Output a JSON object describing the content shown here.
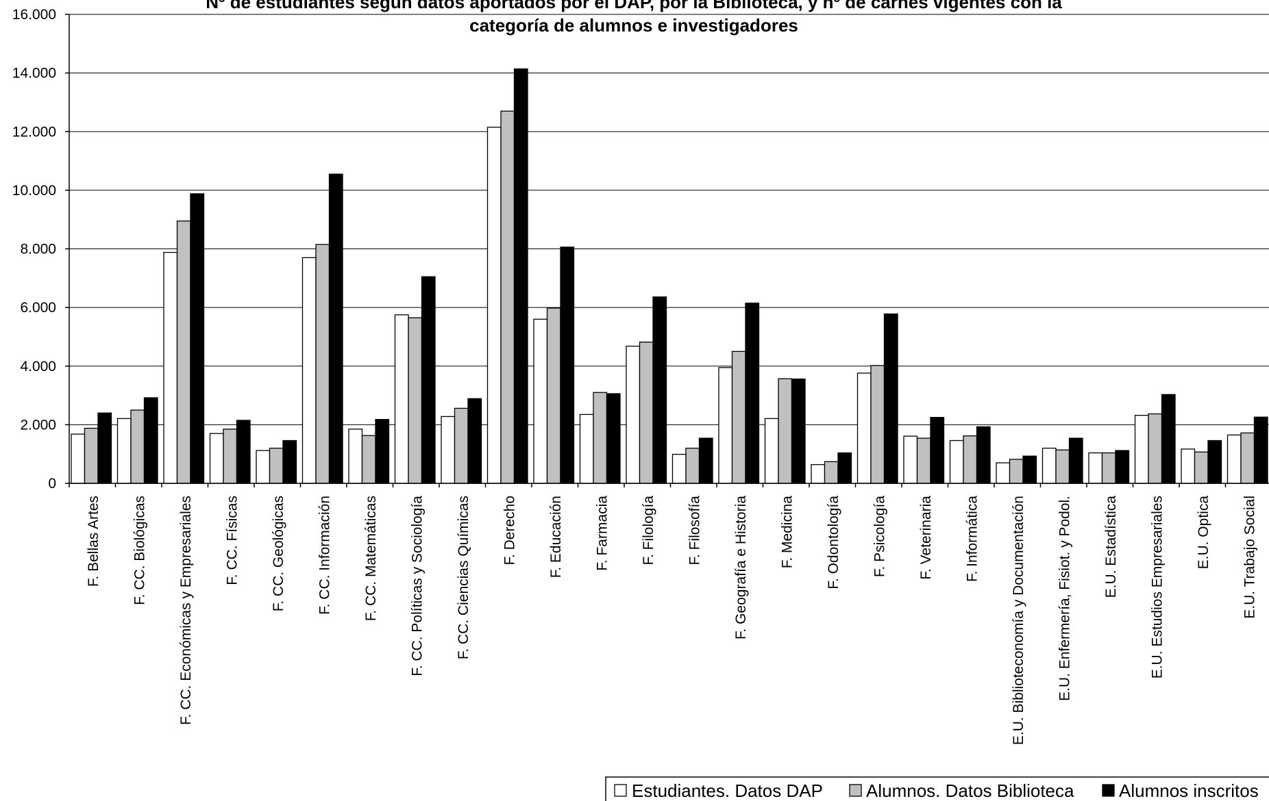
{
  "chart_data": {
    "type": "bar",
    "title_lines": [
      "Nº de estudiantes según datos aportados  por el DAP, por la Biblioteca, y  nº de carnés vigentes con la",
      "categoría de alumnos e investigadores"
    ],
    "xlabel": "",
    "ylabel": "",
    "ylim": [
      0,
      16000
    ],
    "yticks": [
      0,
      2000,
      4000,
      6000,
      8000,
      10000,
      12000,
      14000,
      16000
    ],
    "ytick_labels": [
      "0",
      "2.000",
      "4.000",
      "6.000",
      "8.000",
      "10.000",
      "12.000",
      "14.000",
      "16.000"
    ],
    "grid": "horizontal",
    "legend_position": "bottom-right",
    "categories": [
      "F. Bellas Artes",
      "F. CC. Biológicas",
      "F. CC. Económicas y Empresariales",
      "F. CC. Físicas",
      "F. CC. Geológicas",
      "F. CC. Información",
      "F. CC. Matemáticas",
      "F. CC. Políticas y Sociología",
      "F. CC. Ciencias Químicas",
      "F. Derecho",
      "F. Educación",
      "F. Farmacia",
      "F. Filología",
      "F. Filosofía",
      "F. Geografía e Historia",
      "F. Medicina",
      "F. Odontología",
      "F. Psicología",
      "F. Veterinaria",
      "F. Informática",
      "E.U. Biblioteconomía y Documentación",
      "E.U. Enfermería, Fisiot. y Podol.",
      "E.U. Estadística",
      "E.U. Estudios Empresariales",
      "E.U. Optica",
      "E.U. Trabajo Social"
    ],
    "series": [
      {
        "name": "Estudiantes. Datos DAP",
        "color": "#ffffff",
        "values": [
          1680,
          2210,
          7880,
          1700,
          1120,
          7700,
          1850,
          5750,
          2280,
          12150,
          5600,
          2350,
          4680,
          990,
          3950,
          2210,
          640,
          3760,
          1610,
          1460,
          700,
          1200,
          1040,
          2320,
          1170,
          1650
        ]
      },
      {
        "name": "Alumnos. Datos Biblioteca",
        "color": "#c0c0c0",
        "values": [
          1880,
          2500,
          8950,
          1850,
          1200,
          8150,
          1630,
          5650,
          2560,
          12700,
          5980,
          3100,
          4820,
          1200,
          4500,
          3570,
          740,
          4020,
          1540,
          1620,
          820,
          1140,
          1040,
          2370,
          1070,
          1720
        ]
      },
      {
        "name": "Alumnos inscritos",
        "color": "#000000",
        "values": [
          2400,
          2920,
          9880,
          2150,
          1460,
          10550,
          2180,
          7050,
          2890,
          14140,
          8060,
          3060,
          6360,
          1540,
          6150,
          3560,
          1040,
          5780,
          2250,
          1930,
          930,
          1540,
          1120,
          3030,
          1460,
          2260
        ]
      }
    ]
  }
}
